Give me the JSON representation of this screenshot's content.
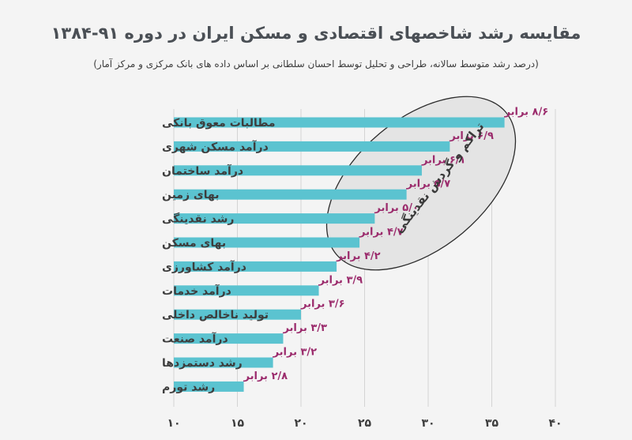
{
  "chart_data": {
    "type": "bar",
    "orientation": "horizontal",
    "title": "مقایسه رشد شاخصهای اقتصادی و مسکن ایران در دوره ۹۱-۱۳۸۴",
    "subtitle": "(درصد رشد متوسط سالانه، طراحی و تحلیل توسط احسان سلطانی بر اساس داده های بانک مرکزی و مرکز آمار)",
    "categories": [
      "مطالبات معوق بانکی",
      "درآمد مسکن شهری",
      "درآمد ساختمان",
      "بهای زمین",
      "رشد نقدینگی",
      "بهای مسکن",
      "درآمد کشاورزی",
      "درآمد خدمات",
      "تولید ناخالص داخلی",
      "درآمد صنعت",
      "رشد دستمزدها",
      "رشد تورم"
    ],
    "values": [
      36,
      31.7,
      29.5,
      28.3,
      25.8,
      24.6,
      22.8,
      21.4,
      20.0,
      18.6,
      17.8,
      15.5
    ],
    "data_labels": [
      "۸/۶ برابر",
      "۶/۹ برابر",
      "۶/۱ برابر",
      "۵/۷ برابر",
      "۵/۰ برابر",
      "۴/۷ برابر",
      "۴/۲ برابر",
      "۳/۹ برابر",
      "۳/۶ برابر",
      "۳/۳ برابر",
      "۳/۲ برابر",
      "۲/۸ برابر"
    ],
    "xlim": [
      10,
      40
    ],
    "xticks": [
      10,
      15,
      20,
      25,
      30,
      35,
      40
    ],
    "xtick_labels": [
      "۱۰",
      "۱۵",
      "۲۰",
      "۲۵",
      "۳۰",
      "۳۵",
      "۴۰"
    ],
    "grid": true,
    "annotation": "تراکم و گردش نقدینگی",
    "colors": {
      "bar": "#5bc3d0",
      "data_label": "#9b2b6c",
      "ellipse_fill": "#e4e4e4",
      "ellipse_stroke": "#2b2b2b",
      "grid": "#d4d4d4",
      "text": "#3d3d3d"
    }
  }
}
